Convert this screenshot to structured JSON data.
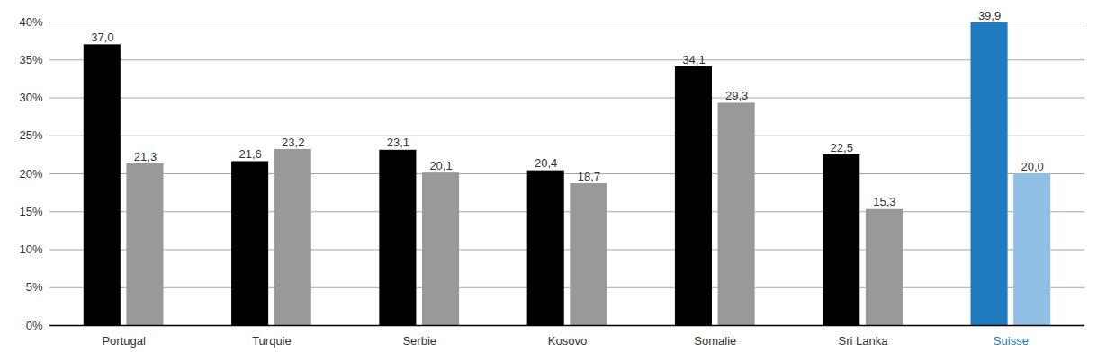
{
  "chart_data": {
    "type": "bar",
    "categories": [
      "Portugal",
      "Turquie",
      "Serbie",
      "Kosovo",
      "Somalie",
      "Sri Lanka",
      "Suisse"
    ],
    "series": [
      {
        "colors": [
          "#000000",
          "#000000",
          "#000000",
          "#000000",
          "#000000",
          "#000000",
          "#1f7bbf"
        ],
        "values": [
          37.0,
          21.6,
          23.1,
          20.4,
          34.1,
          22.5,
          39.9
        ],
        "value_labels": [
          "37,0",
          "21,6",
          "23,1",
          "20,4",
          "34,1",
          "22,5",
          "39,9"
        ]
      },
      {
        "colors": [
          "#999999",
          "#999999",
          "#999999",
          "#999999",
          "#999999",
          "#999999",
          "#8fc0e3"
        ],
        "values": [
          21.3,
          23.2,
          20.1,
          18.7,
          29.3,
          15.3,
          20.0
        ],
        "value_labels": [
          "21,3",
          "23,2",
          "20,1",
          "18,7",
          "29,3",
          "15,3",
          "20,0"
        ]
      }
    ],
    "ylim": [
      0,
      40
    ],
    "yticks": [
      {
        "value": 0,
        "label": "0%"
      },
      {
        "value": 5,
        "label": "5%"
      },
      {
        "value": 10,
        "label": "10%"
      },
      {
        "value": 15,
        "label": "15%"
      },
      {
        "value": 20,
        "label": "20%"
      },
      {
        "value": 25,
        "label": "25%"
      },
      {
        "value": 30,
        "label": "30%"
      },
      {
        "value": 35,
        "label": "35%"
      },
      {
        "value": 40,
        "label": "40%"
      }
    ],
    "grid": true,
    "data_labels": true
  }
}
